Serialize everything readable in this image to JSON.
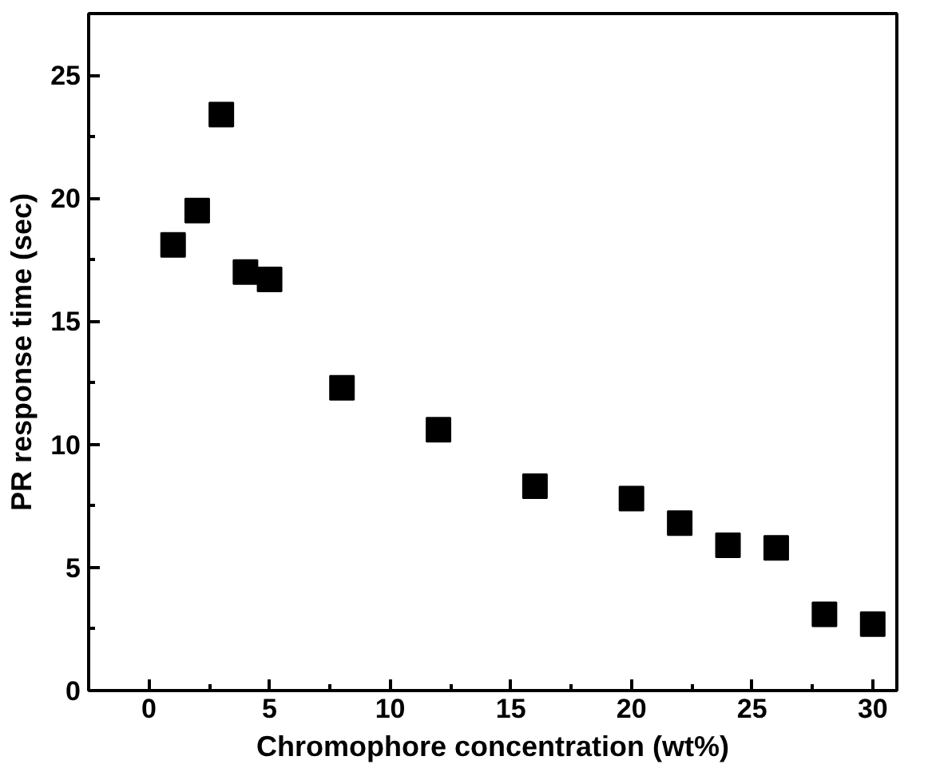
{
  "chart_data": {
    "type": "scatter",
    "xlabel": "Chromophore concentration (wt%)",
    "ylabel": "PR response time (sec)",
    "x": [
      1,
      2,
      3,
      4,
      5,
      8,
      12,
      16,
      20,
      22,
      24,
      26,
      28,
      30
    ],
    "series": [
      {
        "color": "#000000",
        "values": [
          18.1,
          19.5,
          23.4,
          17.0,
          16.7,
          12.3,
          10.6,
          8.3,
          7.8,
          6.8,
          5.9,
          5.8,
          3.1,
          2.7
        ]
      }
    ],
    "xlim": [
      -2.5,
      31
    ],
    "xticks": [
      0,
      5,
      10,
      15,
      20,
      25,
      30
    ],
    "ylim": [
      0,
      27.5
    ],
    "yticks": [
      0,
      5,
      10,
      15,
      20,
      25
    ],
    "marker": "square",
    "grid": false
  }
}
